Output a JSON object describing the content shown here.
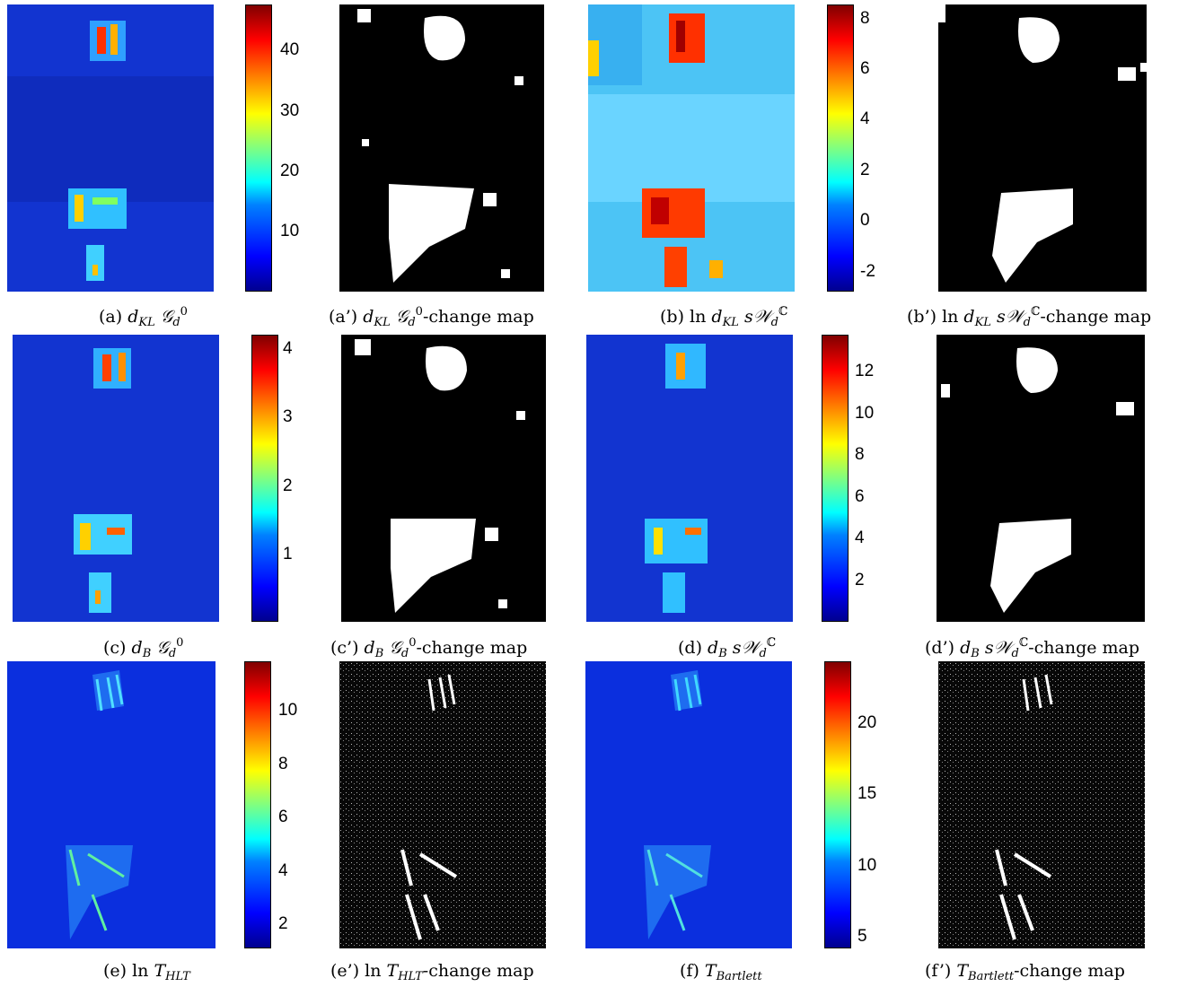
{
  "captions": {
    "a": {
      "pre": "(a) ",
      "main": "d",
      "sub": "KL",
      "mid": "  𝒢",
      "sub2": "d",
      "sup2": "0",
      "post": ""
    },
    "a2": {
      "pre": "(a’) ",
      "main": "d",
      "sub": "KL",
      "mid": "  𝒢",
      "sub2": "d",
      "sup2": "0",
      "post": "-change map"
    },
    "b": {
      "pre": "(b) ln ",
      "main": "d",
      "sub": "KL",
      "mid": "  s𝒲",
      "sub2": "d",
      "sup2": "ℂ",
      "post": ""
    },
    "b2": {
      "pre": "(b’) ln ",
      "main": "d",
      "sub": "KL",
      "mid": "  s𝒲",
      "sub2": "d",
      "sup2": "ℂ",
      "post": "-change map"
    },
    "c": {
      "pre": "(c) ",
      "main": "d",
      "sub": "B",
      "mid": "  𝒢",
      "sub2": "d",
      "sup2": "0",
      "post": ""
    },
    "c2": {
      "pre": "(c’) ",
      "main": "d",
      "sub": "B",
      "mid": "  𝒢",
      "sub2": "d",
      "sup2": "0",
      "post": "-change map"
    },
    "d": {
      "pre": "(d) ",
      "main": "d",
      "sub": "B",
      "mid": "  s𝒲",
      "sub2": "d",
      "sup2": "ℂ",
      "post": ""
    },
    "d2": {
      "pre": "(d’) ",
      "main": "d",
      "sub": "B",
      "mid": "  s𝒲",
      "sub2": "d",
      "sup2": "ℂ",
      "post": "-change map"
    },
    "e": {
      "pre": "(e) ln ",
      "main": "T",
      "sub": "HLT",
      "mid": "",
      "sub2": "",
      "sup2": "",
      "post": ""
    },
    "e2": {
      "pre": "(e’) ln ",
      "main": "T",
      "sub": "HLT",
      "mid": "",
      "sub2": "",
      "sup2": "",
      "post": "-change map"
    },
    "f": {
      "pre": "(f) ",
      "main": "T",
      "sub": "Bartlett",
      "mid": "",
      "sub2": "",
      "sup2": "",
      "post": ""
    },
    "f2": {
      "pre": "(f’) ",
      "main": "T",
      "sub": "Bartlett",
      "mid": "",
      "sub2": "",
      "sup2": "",
      "post": "-change map"
    }
  },
  "colorbars": {
    "a": {
      "ticks": [
        "40",
        "30",
        "20",
        "10"
      ],
      "min": 0,
      "max": 47,
      "values": [
        40,
        30,
        20,
        10
      ]
    },
    "b": {
      "ticks": [
        "8",
        "6",
        "4",
        "2",
        "0",
        "-2"
      ],
      "min": -3,
      "max": 8.6,
      "values": [
        8,
        6,
        4,
        2,
        0,
        -2
      ]
    },
    "c": {
      "ticks": [
        "4",
        "3",
        "2",
        "1"
      ],
      "min": 0,
      "max": 4.2,
      "values": [
        4,
        3,
        2,
        1
      ]
    },
    "d": {
      "ticks": [
        "12",
        "10",
        "8",
        "6",
        "4",
        "2"
      ],
      "min": 0,
      "max": 13.8,
      "values": [
        12,
        10,
        8,
        6,
        4,
        2
      ]
    },
    "e": {
      "ticks": [
        "10",
        "8",
        "6",
        "4",
        "2"
      ],
      "min": 1,
      "max": 11.8,
      "values": [
        10,
        8,
        6,
        4,
        2
      ]
    },
    "f": {
      "ticks": [
        "20",
        "15",
        "10",
        "5"
      ],
      "min": 4,
      "max": 24.3,
      "values": [
        20,
        15,
        10,
        5
      ]
    }
  },
  "colors": {
    "low": "#00008f",
    "field": "#0a2ee0",
    "hot": "#ff2000",
    "change_white": "#ffffff",
    "change_black": "#000000"
  }
}
